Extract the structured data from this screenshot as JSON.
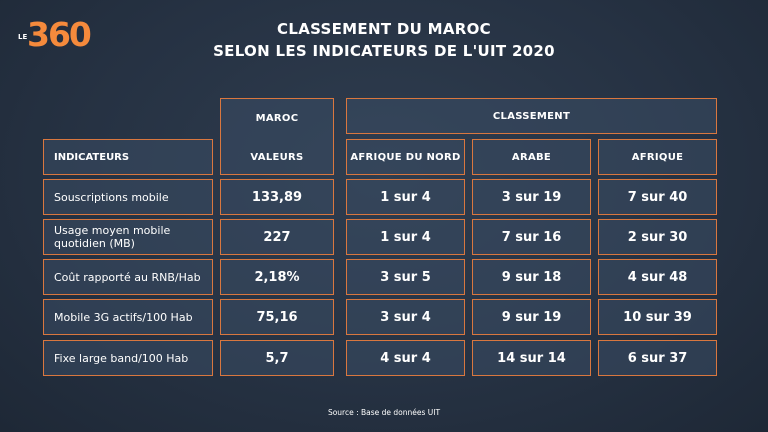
{
  "brand": {
    "prefix": "LE",
    "number": "360"
  },
  "title": {
    "line1": "CLASSEMENT DU MAROC",
    "line2": "SELON LES INDICATEURS DE L'UIT 2020"
  },
  "headers": {
    "maroc": "MAROC",
    "classement": "CLASSEMENT",
    "indicateurs": "INDICATEURS",
    "valeurs": "VALEURS",
    "afrique_du_nord": "AFRIQUE DU NORD",
    "arabe": "ARABE",
    "afrique": "AFRIQUE"
  },
  "rows": [
    {
      "indicator": "Souscriptions mobile",
      "value": "133,89",
      "afrique_du_nord": "1 sur 4",
      "arabe": "3 sur 19",
      "afrique": "7 sur 40"
    },
    {
      "indicator": "Usage moyen mobile quotidien (MB)",
      "value": "227",
      "afrique_du_nord": "1 sur 4",
      "arabe": "7 sur 16",
      "afrique": "2 sur 30"
    },
    {
      "indicator": "Coût rapporté au RNB/Hab",
      "value": "2,18%",
      "afrique_du_nord": "3 sur 5",
      "arabe": "9 sur 18",
      "afrique": "4 sur 48"
    },
    {
      "indicator": "Mobile 3G actifs/100 Hab",
      "value": "75,16",
      "afrique_du_nord": "3 sur 4",
      "arabe": "9 sur 19",
      "afrique": "10 sur 39"
    },
    {
      "indicator": "Fixe large band/100 Hab",
      "value": "5,7",
      "afrique_du_nord": "4 sur 4",
      "arabe": "14 sur 14",
      "afrique": "6 sur 37"
    }
  ],
  "source": "Source : Base de données UIT",
  "colors": {
    "border": "#d9773f",
    "logo": "#f58a3c",
    "background": "#263243"
  }
}
